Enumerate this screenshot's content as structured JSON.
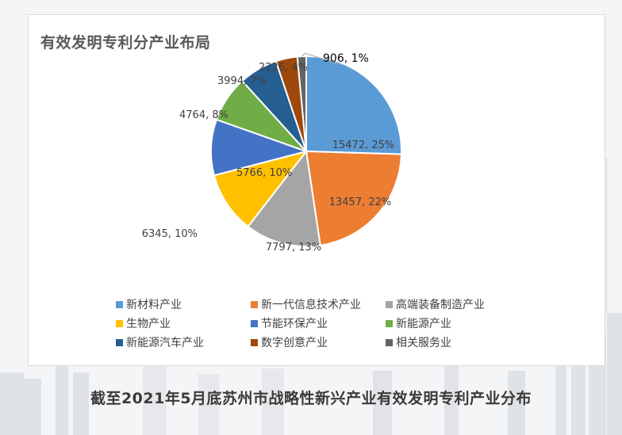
{
  "chart_data": {
    "type": "pie",
    "title": "有效发明专利分产业布局",
    "legend_position": "bottom",
    "series": [
      {
        "name": "新材料产业",
        "value": 15472,
        "label": "15472, 25%",
        "color": "#5b9bd5"
      },
      {
        "name": "新一代信息技术产业",
        "value": 13457,
        "label": "13457, 22%",
        "color": "#ed7d31"
      },
      {
        "name": "高端装备制造产业",
        "value": 7797,
        "label": "7797, 13%",
        "color": "#a5a5a5"
      },
      {
        "name": "生物产业",
        "value": 6345,
        "label": "6345, 10%",
        "color": "#ffc000"
      },
      {
        "name": "节能环保产业",
        "value": 5766,
        "label": "5766, 10%",
        "color": "#4472c4"
      },
      {
        "name": "新能源产业",
        "value": 4764,
        "label": "4764, 8%",
        "color": "#70ad47"
      },
      {
        "name": "新能源汽车产业",
        "value": 3994,
        "label": "3994, 7%",
        "color": "#255e91"
      },
      {
        "name": "数字创意产业",
        "value": 2226,
        "label": "2226, 4%",
        "color": "#9e480e"
      },
      {
        "name": "相关服务业",
        "value": 906,
        "label": "906, 1%",
        "color": "#636363"
      }
    ]
  },
  "caption": "截至2021年5月底苏州市战略性新兴产业有效发明专利产业分布"
}
